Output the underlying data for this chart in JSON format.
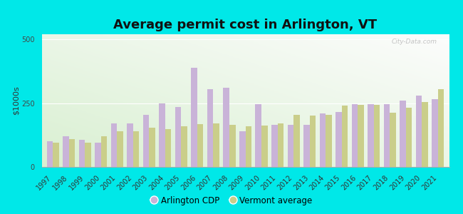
{
  "title": "Average permit cost in Arlington, VT",
  "ylabel": "$1000s",
  "years": [
    1997,
    1998,
    1999,
    2000,
    2001,
    2002,
    2003,
    2004,
    2005,
    2006,
    2007,
    2008,
    2009,
    2010,
    2011,
    2012,
    2013,
    2014,
    2015,
    2016,
    2017,
    2018,
    2019,
    2020,
    2021
  ],
  "arlington": [
    100,
    120,
    105,
    95,
    170,
    170,
    205,
    250,
    235,
    390,
    305,
    310,
    140,
    245,
    165,
    165,
    165,
    210,
    215,
    245,
    245,
    245,
    260,
    280,
    265
  ],
  "vermont": [
    95,
    110,
    95,
    120,
    140,
    140,
    155,
    148,
    160,
    168,
    170,
    165,
    160,
    163,
    170,
    205,
    200,
    205,
    240,
    242,
    242,
    212,
    232,
    255,
    305
  ],
  "arlington_color": "#c9b3d8",
  "vermont_color": "#cace8a",
  "background_outer": "#00e8e8",
  "ylim": [
    0,
    520
  ],
  "yticks": [
    0,
    250,
    500
  ],
  "legend_arlington": "Arlington CDP",
  "legend_vermont": "Vermont average",
  "watermark": "City-Data.com",
  "title_fontsize": 13,
  "axis_label_fontsize": 8,
  "tick_fontsize": 7
}
